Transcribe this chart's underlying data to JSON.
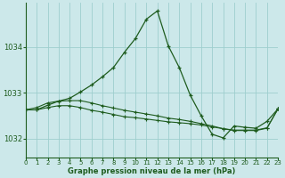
{
  "xlabel": "Graphe pression niveau de la mer (hPa)",
  "x_ticks": [
    0,
    1,
    2,
    3,
    4,
    5,
    6,
    7,
    8,
    9,
    10,
    11,
    12,
    13,
    14,
    15,
    16,
    17,
    18,
    19,
    20,
    21,
    22,
    23
  ],
  "y_ticks": [
    1032,
    1033,
    1034
  ],
  "ylim": [
    1031.6,
    1034.95
  ],
  "xlim": [
    0,
    23
  ],
  "bg_color": "#cce8ea",
  "grid_color": "#9ecece",
  "line_color": "#1e5c1e",
  "series1": [
    1032.63,
    1032.63,
    1032.73,
    1032.82,
    1032.88,
    1033.02,
    1033.17,
    1033.35,
    1033.55,
    1033.88,
    1034.18,
    1034.6,
    1034.78,
    1034.02,
    1033.55,
    1032.95,
    1032.5,
    1032.1,
    1032.02,
    1032.28,
    1032.25,
    1032.23,
    1032.38,
    1032.65
  ],
  "series2": [
    1032.63,
    1032.68,
    1032.78,
    1032.82,
    1032.83,
    1032.83,
    1032.78,
    1032.72,
    1032.67,
    1032.62,
    1032.58,
    1032.54,
    1032.5,
    1032.45,
    1032.42,
    1032.38,
    1032.33,
    1032.28,
    1032.22,
    1032.18,
    1032.18,
    1032.18,
    1032.23,
    1032.65
  ],
  "series3": [
    1032.63,
    1032.63,
    1032.68,
    1032.72,
    1032.72,
    1032.68,
    1032.62,
    1032.58,
    1032.53,
    1032.48,
    1032.46,
    1032.43,
    1032.4,
    1032.37,
    1032.35,
    1032.33,
    1032.3,
    1032.26,
    1032.22,
    1032.19,
    1032.19,
    1032.19,
    1032.24,
    1032.65
  ]
}
